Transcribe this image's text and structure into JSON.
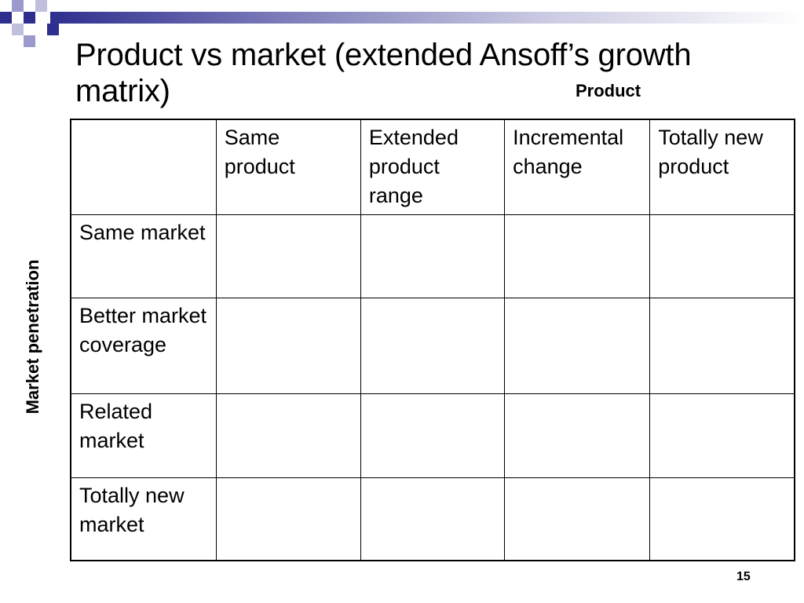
{
  "slide": {
    "title": "Product vs market (extended Ansoff’s growth matrix)",
    "axis_top_label": "Product",
    "axis_side_label": "Market penetration",
    "slide_number": "15"
  },
  "matrix": {
    "corner": "",
    "column_headers": [
      "Same product",
      "Extended product range",
      "Incremental change",
      "Totally new product"
    ],
    "row_headers": [
      "Same market",
      "Better market coverage",
      "Related market",
      "Totally new market"
    ],
    "cells": [
      [
        "",
        "",
        "",
        ""
      ],
      [
        "",
        "",
        "",
        ""
      ],
      [
        "",
        "",
        "",
        ""
      ],
      [
        "",
        "",
        "",
        ""
      ]
    ]
  },
  "colors": {
    "accent_dark": "#2e2e8f",
    "accent_light": "#9a9acc",
    "text": "#000000",
    "background": "#ffffff"
  }
}
